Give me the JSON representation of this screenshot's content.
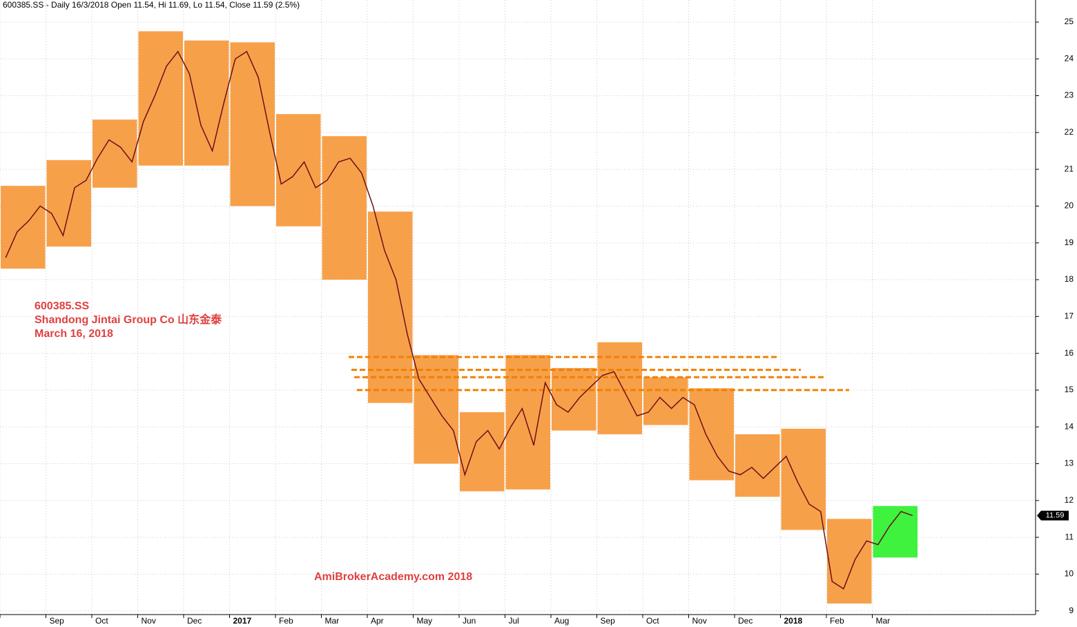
{
  "chart_data": {
    "type": "box-candle",
    "title": "600385.SS - Daily 16/3/2018 Open 11.54, Hi 11.69, Lo 11.54, Close 11.59 (2.5%)",
    "annotations": [
      "600385.SS",
      "Shandong Jintai Group Co  山东金泰",
      "March 16, 2018",
      "AmiBrokerAcademy.com  2018"
    ],
    "categories": [
      null,
      "Sep",
      "Oct",
      "Nov",
      "Dec",
      "2017",
      "Feb",
      "Mar",
      "Apr",
      "May",
      "Jun",
      "Jul",
      "Aug",
      "Sep",
      "Oct",
      "Nov",
      "Dec",
      "2018",
      "Feb",
      "Mar"
    ],
    "box_high": [
      20.55,
      21.25,
      22.35,
      24.75,
      24.5,
      24.45,
      22.5,
      21.9,
      19.85,
      15.95,
      14.4,
      15.95,
      15.6,
      16.3,
      15.35,
      15.05,
      13.8,
      13.95,
      11.5,
      11.85
    ],
    "box_low": [
      18.3,
      18.9,
      20.5,
      21.1,
      21.1,
      20.0,
      19.45,
      18.0,
      14.65,
      13.0,
      12.25,
      12.3,
      13.9,
      13.8,
      14.05,
      12.55,
      12.1,
      11.2,
      9.2,
      10.45
    ],
    "box_colors": [
      "#f7a04a",
      "#f7a04a",
      "#f7a04a",
      "#f7a04a",
      "#f7a04a",
      "#f7a04a",
      "#f7a04a",
      "#f7a04a",
      "#f7a04a",
      "#f7a04a",
      "#f7a04a",
      "#f7a04a",
      "#f7a04a",
      "#f7a04a",
      "#f7a04a",
      "#f7a04a",
      "#f7a04a",
      "#f7a04a",
      "#f7a04a",
      "#3ef23e"
    ],
    "closes": [
      [
        18.6,
        19.3,
        19.6,
        20.0
      ],
      [
        19.8,
        19.2,
        20.5,
        20.7
      ],
      [
        21.3,
        21.8,
        21.6,
        21.2
      ],
      [
        22.3,
        23.0,
        23.8,
        24.2
      ],
      [
        23.6,
        22.2,
        21.5,
        22.8
      ],
      [
        24.0,
        24.2,
        23.5,
        22.0
      ],
      [
        20.6,
        20.8,
        21.2,
        20.5
      ],
      [
        20.7,
        21.2,
        21.3,
        20.9
      ],
      [
        20.0,
        18.8,
        18.0,
        16.5
      ],
      [
        15.3,
        14.8,
        14.3,
        13.9
      ],
      [
        12.7,
        13.6,
        13.9,
        13.4
      ],
      [
        14.0,
        14.5,
        13.5,
        15.2
      ],
      [
        14.6,
        14.4,
        14.8,
        15.1
      ],
      [
        15.4,
        15.5,
        14.9,
        14.3
      ],
      [
        14.4,
        14.8,
        14.5,
        14.8
      ],
      [
        14.6,
        13.8,
        13.2,
        12.8
      ],
      [
        12.7,
        12.9,
        12.6,
        12.9
      ],
      [
        13.2,
        12.5,
        11.9,
        11.7
      ],
      [
        9.8,
        9.6,
        10.4,
        10.9
      ],
      [
        10.8,
        11.3,
        11.7,
        11.59
      ]
    ],
    "line_color": "#6b0f1a",
    "levels": [
      15.9,
      15.55,
      15.35,
      15.0
    ],
    "level_color": "#f08000",
    "last_price": 11.59,
    "ylim": [
      8.9,
      25.6
    ],
    "yticks": [
      9,
      10,
      11,
      12,
      13,
      14,
      15,
      16,
      17,
      18,
      19,
      20,
      21,
      22,
      23,
      24,
      25
    ],
    "grid": true
  }
}
